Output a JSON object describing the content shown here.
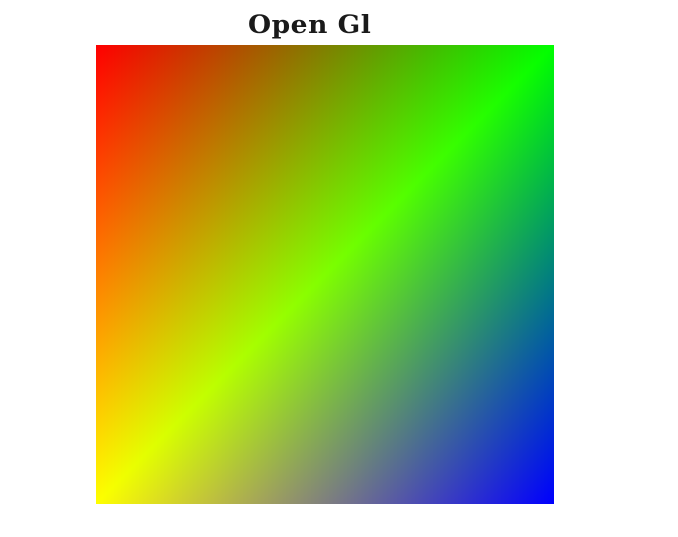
{
  "window": {
    "title": "Open Gl"
  },
  "canvas": {
    "corner_colors": {
      "top_left": "#ff0000",
      "top_right": "#00ff00",
      "bottom_right": "#0000ff",
      "bottom_left": "#ffff00"
    },
    "triangles": [
      [
        "top_left",
        "top_right",
        "bottom_left"
      ],
      [
        "top_right",
        "bottom_right",
        "bottom_left"
      ]
    ],
    "background": "#ffffff"
  }
}
